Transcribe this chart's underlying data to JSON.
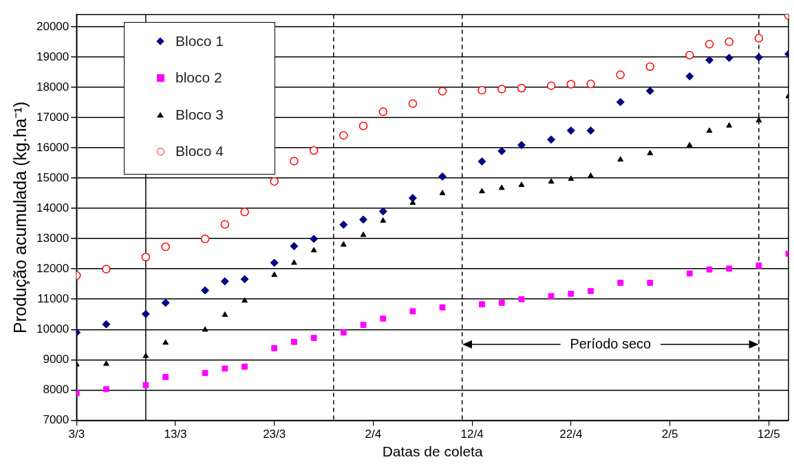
{
  "chart_data": {
    "type": "scatter",
    "xlabel": "Datas de coleta",
    "ylabel": "Produção acumulada (kg.ha⁻¹)",
    "x": [
      "--03-03",
      "--03-06",
      "--03-10",
      "--03-12",
      "--03-16",
      "--03-18",
      "--03-20",
      "--03-23",
      "--03-25",
      "--03-27",
      "--03-30",
      "--04-01",
      "--04-03",
      "--04-06",
      "--04-09",
      "--04-13",
      "--04-15",
      "--04-17",
      "--04-20",
      "--04-22",
      "--04-24",
      "--04-27",
      "--04-30",
      "--05-04",
      "--05-06",
      "--05-08",
      "--05-11",
      "--05-14"
    ],
    "series": [
      {
        "name": "Bloco 1",
        "color": "#000080",
        "marker": "diamond",
        "values": [
          9900,
          10170,
          10510,
          10880,
          11290,
          11590,
          11660,
          12200,
          12750,
          12990,
          13460,
          13630,
          13900,
          14340,
          15050,
          15550,
          15890,
          16090,
          16270,
          16570,
          16570,
          17510,
          17880,
          18360,
          18900,
          18970,
          18990,
          19100
        ]
      },
      {
        "name": "bloco 2",
        "color": "#ff00ff",
        "marker": "square",
        "values": [
          7900,
          8030,
          8160,
          8430,
          8560,
          8710,
          8770,
          9380,
          9590,
          9720,
          9900,
          10150,
          10360,
          10600,
          10730,
          10830,
          10880,
          11000,
          11100,
          11180,
          11270,
          11540,
          11540,
          11850,
          11980,
          12010,
          12110,
          12500
        ]
      },
      {
        "name": "Bloco 3",
        "color": "#000000",
        "marker": "triangle",
        "values": [
          8840,
          8860,
          9120,
          9560,
          9990,
          10480,
          10950,
          11800,
          12200,
          12610,
          12800,
          13120,
          13590,
          14180,
          14500,
          14560,
          14670,
          14770,
          14880,
          14970,
          15070,
          15610,
          15820,
          16080,
          16560,
          16730,
          16900,
          17700
        ]
      },
      {
        "name": "Bloco 4",
        "color": "#ff0000",
        "marker": "circle",
        "values": [
          11780,
          11990,
          12390,
          12730,
          12990,
          13470,
          13880,
          14890,
          15560,
          15910,
          16410,
          16720,
          17190,
          17460,
          17870,
          17900,
          17940,
          17970,
          18050,
          18100,
          18110,
          18410,
          18680,
          19060,
          19420,
          19500,
          19620,
          20370
        ]
      }
    ],
    "xlim": [
      "--03-03",
      "--05-14"
    ],
    "xticks": [
      {
        "value": "--03-03",
        "label": "3/3"
      },
      {
        "value": "--03-13",
        "label": "13/3"
      },
      {
        "value": "--03-23",
        "label": "23/3"
      },
      {
        "value": "--04-02",
        "label": "2/4"
      },
      {
        "value": "--04-12",
        "label": "12/4"
      },
      {
        "value": "--04-22",
        "label": "22/4"
      },
      {
        "value": "--05-02",
        "label": "2/5"
      },
      {
        "value": "--05-12",
        "label": "12/5"
      }
    ],
    "ylim": [
      7000,
      20400
    ],
    "yticks": [
      7000,
      8000,
      9000,
      10000,
      11000,
      12000,
      13000,
      14000,
      15000,
      16000,
      17000,
      18000,
      19000,
      20000
    ],
    "grid": "y",
    "legend": "top left",
    "ref_lines": [
      {
        "axis": "x",
        "value": "--03-10",
        "color": "#000000",
        "line_style": "solid"
      },
      {
        "axis": "x",
        "value": "--03-29",
        "color": "#000000",
        "line_style": "dashed"
      },
      {
        "axis": "x",
        "value": "--04-11",
        "color": "#000000",
        "line_style": "dashed"
      },
      {
        "axis": "x",
        "value": "--05-11",
        "color": "#000000",
        "line_style": "dashed"
      }
    ],
    "annotations": [
      "Período seco"
    ]
  }
}
